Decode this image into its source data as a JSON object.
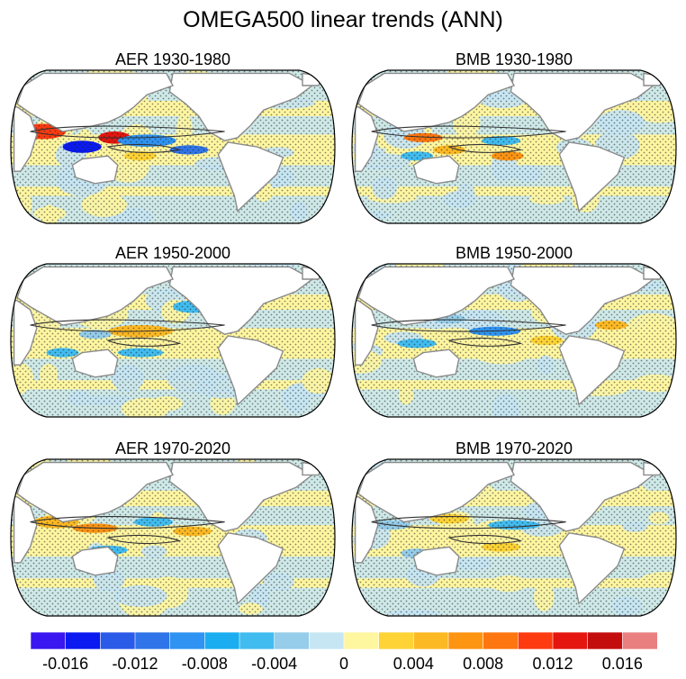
{
  "figure": {
    "title": "OMEGA500 linear trends (ANN)"
  },
  "panels": [
    {
      "label": "AER 1930-1980",
      "variant": 0
    },
    {
      "label": "BMB 1930-1980",
      "variant": 1
    },
    {
      "label": "AER 1950-2000",
      "variant": 2
    },
    {
      "label": "BMB 1950-2000",
      "variant": 3
    },
    {
      "label": "AER 1970-2020",
      "variant": 4
    },
    {
      "label": "BMB 1970-2020",
      "variant": 5
    }
  ],
  "colorbar": {
    "colors": [
      "#3a16f0",
      "#0a1af0",
      "#2a5ae8",
      "#2f74e8",
      "#2e93f2",
      "#1aaef0",
      "#41bcf0",
      "#95cdea",
      "#c6e6f4",
      "#fff6a0",
      "#fdd335",
      "#fdb923",
      "#fd9412",
      "#fd7610",
      "#fd3a10",
      "#e5150f",
      "#c40d0d",
      "#ea7f7f"
    ],
    "labels": [
      "-0.016",
      "-0.012",
      "-0.008",
      "-0.004",
      "0",
      "0.004",
      "0.008",
      "0.012",
      "0.016"
    ]
  },
  "chart_data": {
    "type": "heatmap",
    "projection": "Robinson (Pacific-centered)",
    "variable": "OMEGA500 linear trends (ANN)",
    "contour_levels": [
      -0.016,
      -0.014,
      -0.012,
      -0.01,
      -0.008,
      -0.006,
      -0.004,
      -0.002,
      0,
      0.002,
      0.004,
      0.006,
      0.008,
      0.01,
      0.012,
      0.014,
      0.016
    ],
    "panels": [
      "AER 1930-1980",
      "BMB 1930-1980",
      "AER 1950-2000",
      "BMB 1950-2000",
      "AER 1970-2020",
      "BMB 1970-2020"
    ],
    "stippling": "dots",
    "land": "white with gray coastlines"
  }
}
